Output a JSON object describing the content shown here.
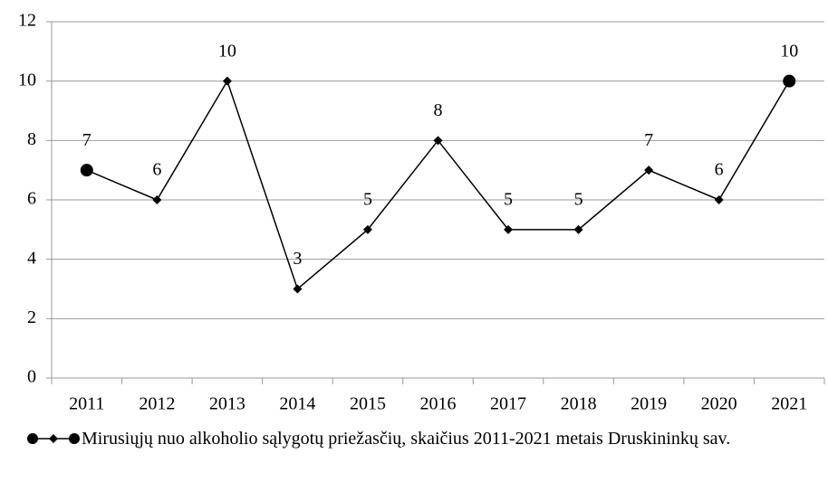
{
  "chart_data": {
    "type": "line",
    "categories": [
      "2011",
      "2012",
      "2013",
      "2014",
      "2015",
      "2016",
      "2017",
      "2018",
      "2019",
      "2020",
      "2021"
    ],
    "series": [
      {
        "name": "Mirusiųjų nuo alkoholio sąlygotų priežasčių, skaičius 2011-2021 metais Druskininkų sav.",
        "color": "#000000",
        "values": [
          7,
          6,
          10,
          3,
          5,
          8,
          5,
          5,
          7,
          6,
          10
        ]
      }
    ],
    "ylim": [
      0,
      12
    ],
    "yticks": [
      0,
      2,
      4,
      6,
      8,
      10,
      12
    ],
    "grid": true,
    "legend": "bottom"
  }
}
